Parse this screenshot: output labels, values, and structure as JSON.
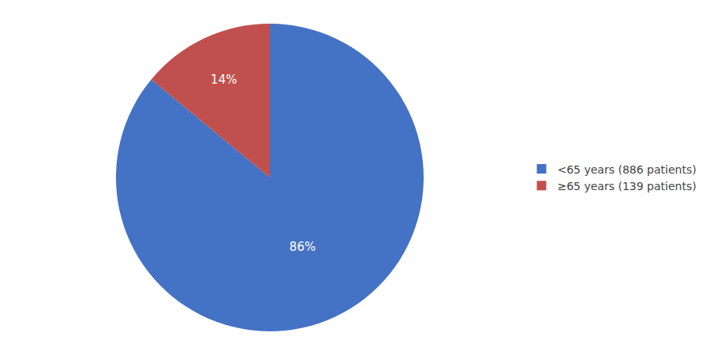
{
  "chart_data": {
    "type": "pie",
    "categories": [
      "<65 years (886 patients)",
      "≥65 years (139 patients)"
    ],
    "values": [
      86,
      14
    ],
    "value_labels": [
      "86%",
      "14%"
    ],
    "colors": [
      "#4472C4",
      "#C0504D"
    ],
    "data_labels": true,
    "legend": "right"
  }
}
